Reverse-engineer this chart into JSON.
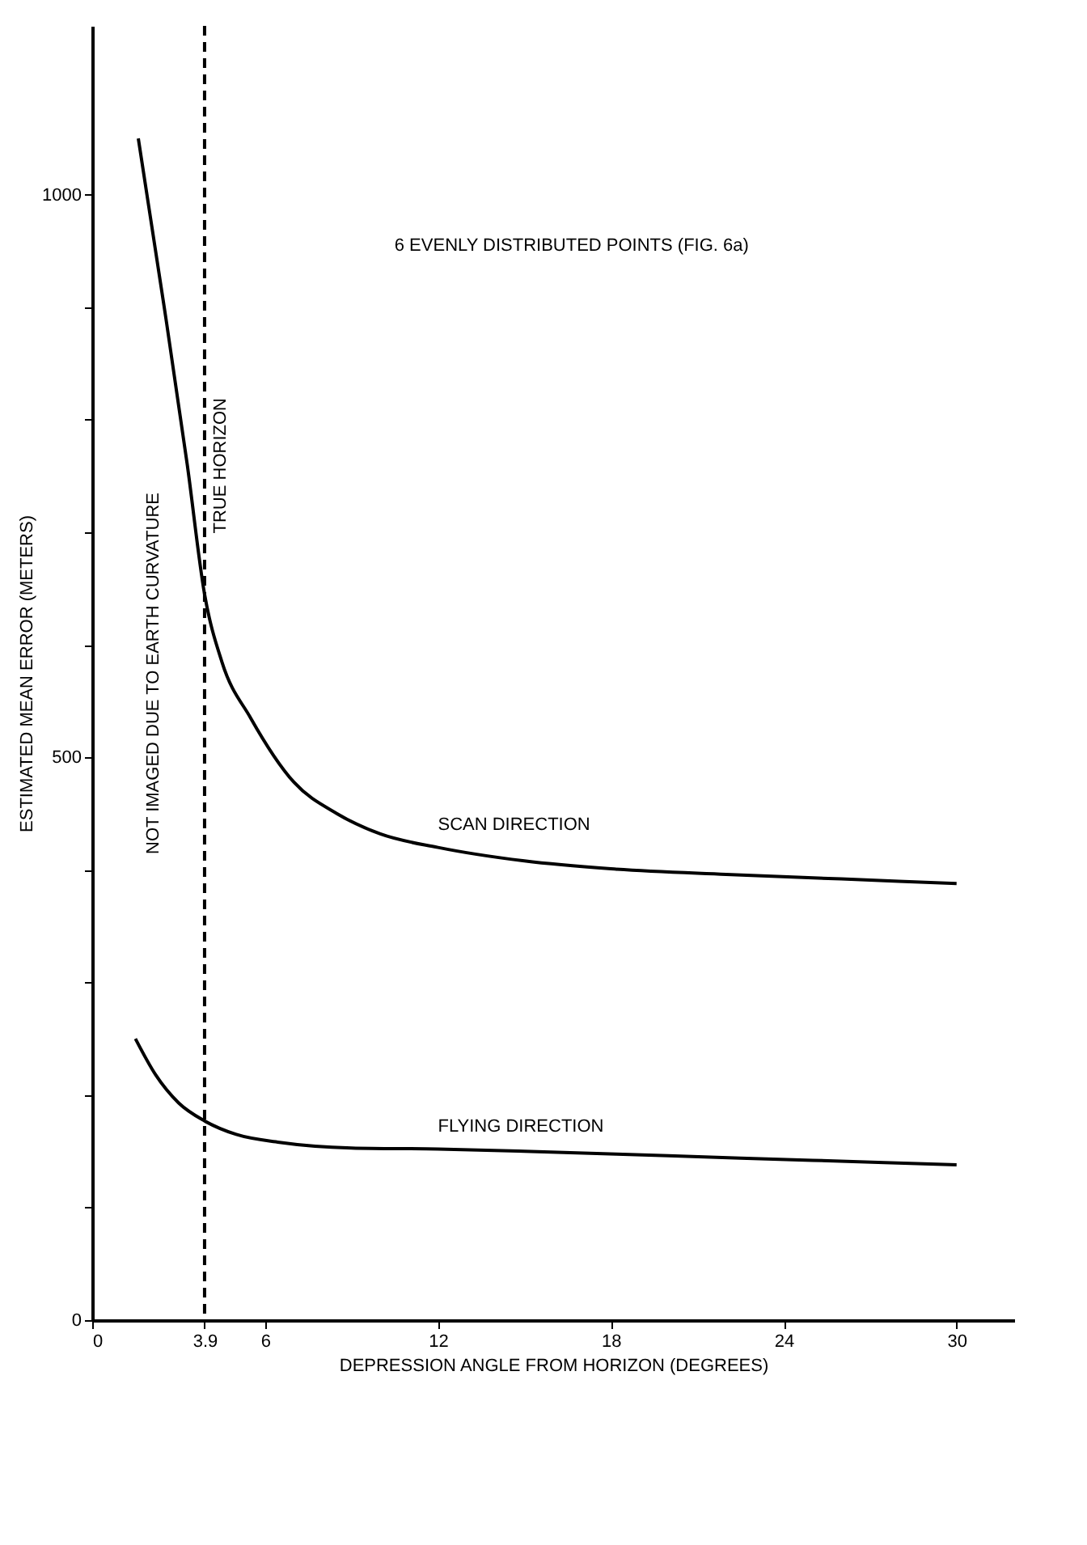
{
  "chart_data": {
    "type": "line",
    "xlabel": "DEPRESSION ANGLE FROM HORIZON (DEGREES)",
    "ylabel": "ESTIMATED MEAN ERROR (METERS)",
    "xlim": [
      0,
      32
    ],
    "xticks": [
      0,
      3.9,
      6,
      12,
      18,
      24,
      30
    ],
    "ylim": [
      0,
      1150
    ],
    "yticks": [
      0,
      {
        "value": 100,
        "label": null
      },
      {
        "value": 200,
        "label": null
      },
      {
        "value": 300,
        "label": null
      },
      {
        "value": 400,
        "label": null
      },
      500,
      {
        "value": 600,
        "label": null
      },
      {
        "value": 700,
        "label": null
      },
      {
        "value": 800,
        "label": null
      },
      {
        "value": 900,
        "label": null
      },
      1000
    ],
    "grid": false,
    "legend": false,
    "line_style": "solid",
    "marker": "none",
    "series": [
      {
        "name": "SCAN DIRECTION",
        "color": "#000000",
        "x": [
          1.6,
          2.5,
          3.3,
          3.9,
          4.5,
          5.5,
          7,
          8.5,
          10,
          12,
          15,
          18,
          22,
          26,
          30
        ],
        "values": [
          1050,
          900,
          760,
          645,
          585,
          535,
          478,
          450,
          432,
          420,
          408,
          401,
          396,
          392,
          388
        ]
      },
      {
        "name": "FLYING DIRECTION",
        "color": "#000000",
        "x": [
          1.5,
          2.2,
          3,
          3.9,
          5,
          6.5,
          9,
          12,
          15,
          20,
          25,
          30
        ],
        "values": [
          250,
          218,
          193,
          177,
          165,
          158,
          153,
          152,
          150,
          146,
          142,
          138
        ]
      }
    ],
    "ref_lines": [
      {
        "axis": "x",
        "value": 3.9,
        "label": "TRUE HORIZON",
        "line_style": "dashed",
        "color": "#000000"
      }
    ],
    "annotations": [
      "6 EVENLY DISTRIBUTED POINTS (FIG. 6a)",
      "NOT IMAGED DUE TO EARTH CURVATURE"
    ]
  }
}
